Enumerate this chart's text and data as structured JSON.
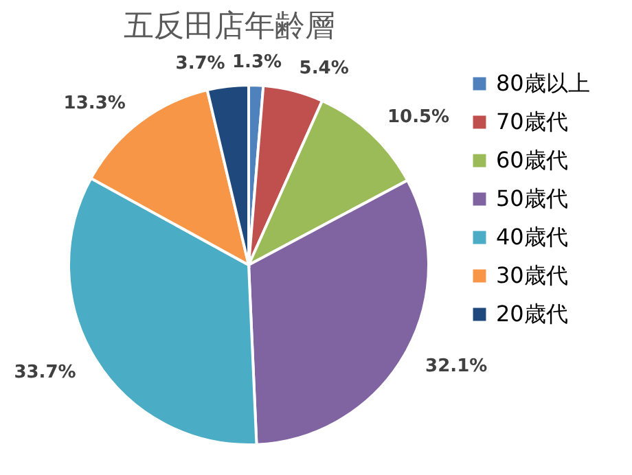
{
  "chart_data": {
    "type": "pie",
    "title": "五反田店年齢層",
    "categories": [
      "80歳以上",
      "70歳代",
      "60歳代",
      "50歳代",
      "40歳代",
      "30歳代",
      "20歳代"
    ],
    "values": [
      1.3,
      5.4,
      10.5,
      32.1,
      33.7,
      13.3,
      3.7
    ],
    "colors": [
      "#4f81bd",
      "#c0504d",
      "#9bbb59",
      "#8064a2",
      "#4bacc6",
      "#f79646",
      "#1f497d"
    ],
    "value_labels": [
      "1.3%",
      "5.4%",
      "10.5%",
      "32.1%",
      "33.7%",
      "13.3%",
      "3.7%"
    ],
    "legend": "right"
  }
}
